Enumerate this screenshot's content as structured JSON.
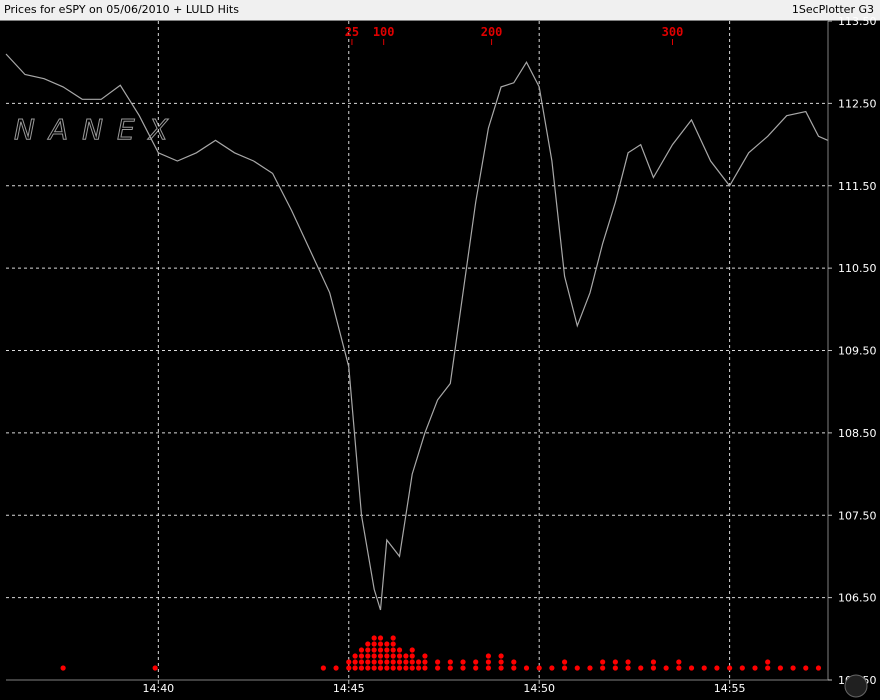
{
  "header": {
    "title": "Prices  for eSPY on 05/06/2010 +  LULD Hits",
    "app_name": "1SecPlotter G3"
  },
  "watermark": "NANEX",
  "colors": {
    "background": "#000000",
    "grid": "#ffffff",
    "price_line": "#a8a8a8",
    "hits": "#ff0000",
    "counts": "#e00000"
  },
  "chart_data": {
    "type": "line",
    "x_unit": "time",
    "x_range": [
      "14:36:00",
      "14:57:35"
    ],
    "x_ticks": [
      "14:40",
      "14:45",
      "14:50",
      "14:55"
    ],
    "y_range": [
      105.5,
      113.5
    ],
    "y_ticks": [
      "113.50",
      "112.50",
      "111.50",
      "110.50",
      "109.50",
      "108.50",
      "107.50",
      "106.50",
      "105.50"
    ],
    "y_axis_position": "right",
    "grid": true,
    "series": [
      {
        "kind": "price",
        "points": [
          [
            "14:36:00",
            113.1
          ],
          [
            "14:36:30",
            112.85
          ],
          [
            "14:37:00",
            112.8
          ],
          [
            "14:37:30",
            112.7
          ],
          [
            "14:38:00",
            112.55
          ],
          [
            "14:38:30",
            112.55
          ],
          [
            "14:39:00",
            112.72
          ],
          [
            "14:39:30",
            112.35
          ],
          [
            "14:40:00",
            111.9
          ],
          [
            "14:40:30",
            111.8
          ],
          [
            "14:41:00",
            111.9
          ],
          [
            "14:41:30",
            112.05
          ],
          [
            "14:42:00",
            111.9
          ],
          [
            "14:42:30",
            111.8
          ],
          [
            "14:43:00",
            111.65
          ],
          [
            "14:43:30",
            111.2
          ],
          [
            "14:44:00",
            110.7
          ],
          [
            "14:44:30",
            110.2
          ],
          [
            "14:45:00",
            109.3
          ],
          [
            "14:45:20",
            107.5
          ],
          [
            "14:45:40",
            106.6
          ],
          [
            "14:45:50",
            106.35
          ],
          [
            "14:46:00",
            107.2
          ],
          [
            "14:46:20",
            107.0
          ],
          [
            "14:46:40",
            108.0
          ],
          [
            "14:47:00",
            108.5
          ],
          [
            "14:47:20",
            108.9
          ],
          [
            "14:47:40",
            109.1
          ],
          [
            "14:48:00",
            110.2
          ],
          [
            "14:48:20",
            111.3
          ],
          [
            "14:48:40",
            112.2
          ],
          [
            "14:49:00",
            112.7
          ],
          [
            "14:49:20",
            112.75
          ],
          [
            "14:49:40",
            113.0
          ],
          [
            "14:50:00",
            112.7
          ],
          [
            "14:50:20",
            111.8
          ],
          [
            "14:50:40",
            110.4
          ],
          [
            "14:51:00",
            109.8
          ],
          [
            "14:51:20",
            110.2
          ],
          [
            "14:51:40",
            110.8
          ],
          [
            "14:52:00",
            111.3
          ],
          [
            "14:52:20",
            111.9
          ],
          [
            "14:52:40",
            112.0
          ],
          [
            "14:53:00",
            111.6
          ],
          [
            "14:53:30",
            112.0
          ],
          [
            "14:54:00",
            112.3
          ],
          [
            "14:54:30",
            111.8
          ],
          [
            "14:55:00",
            111.5
          ],
          [
            "14:55:30",
            111.9
          ],
          [
            "14:56:00",
            112.1
          ],
          [
            "14:56:30",
            112.35
          ],
          [
            "14:57:00",
            112.4
          ],
          [
            "14:57:20",
            112.1
          ],
          [
            "14:57:35",
            112.05
          ]
        ]
      },
      {
        "kind": "luld_hits",
        "points": [
          [
            "14:37:30",
            1
          ],
          [
            "14:39:55",
            1
          ],
          [
            "14:44:20",
            1
          ],
          [
            "14:44:40",
            1
          ],
          [
            "14:45:00",
            2
          ],
          [
            "14:45:10",
            3
          ],
          [
            "14:45:20",
            4
          ],
          [
            "14:45:30",
            5
          ],
          [
            "14:45:40",
            6
          ],
          [
            "14:45:50",
            6
          ],
          [
            "14:46:00",
            5
          ],
          [
            "14:46:10",
            6
          ],
          [
            "14:46:20",
            4
          ],
          [
            "14:46:30",
            3
          ],
          [
            "14:46:40",
            4
          ],
          [
            "14:46:50",
            2
          ],
          [
            "14:47:00",
            3
          ],
          [
            "14:47:20",
            2
          ],
          [
            "14:47:40",
            2
          ],
          [
            "14:48:00",
            2
          ],
          [
            "14:48:20",
            2
          ],
          [
            "14:48:40",
            3
          ],
          [
            "14:49:00",
            3
          ],
          [
            "14:49:20",
            2
          ],
          [
            "14:49:40",
            1
          ],
          [
            "14:50:00",
            1
          ],
          [
            "14:50:20",
            1
          ],
          [
            "14:50:40",
            2
          ],
          [
            "14:51:00",
            1
          ],
          [
            "14:51:20",
            1
          ],
          [
            "14:51:40",
            2
          ],
          [
            "14:52:00",
            2
          ],
          [
            "14:52:20",
            2
          ],
          [
            "14:52:40",
            1
          ],
          [
            "14:53:00",
            2
          ],
          [
            "14:53:20",
            1
          ],
          [
            "14:53:40",
            2
          ],
          [
            "14:54:00",
            1
          ],
          [
            "14:54:20",
            1
          ],
          [
            "14:54:40",
            1
          ],
          [
            "14:55:00",
            1
          ],
          [
            "14:55:20",
            1
          ],
          [
            "14:55:40",
            1
          ],
          [
            "14:56:00",
            2
          ],
          [
            "14:56:20",
            1
          ],
          [
            "14:56:40",
            1
          ],
          [
            "14:57:00",
            1
          ],
          [
            "14:57:20",
            1
          ]
        ]
      }
    ],
    "annotations": [
      {
        "text": "25",
        "x": "14:45:05"
      },
      {
        "text": "100",
        "x": "14:45:55"
      },
      {
        "text": "200",
        "x": "14:48:45"
      },
      {
        "text": "300",
        "x": "14:53:30"
      }
    ]
  }
}
